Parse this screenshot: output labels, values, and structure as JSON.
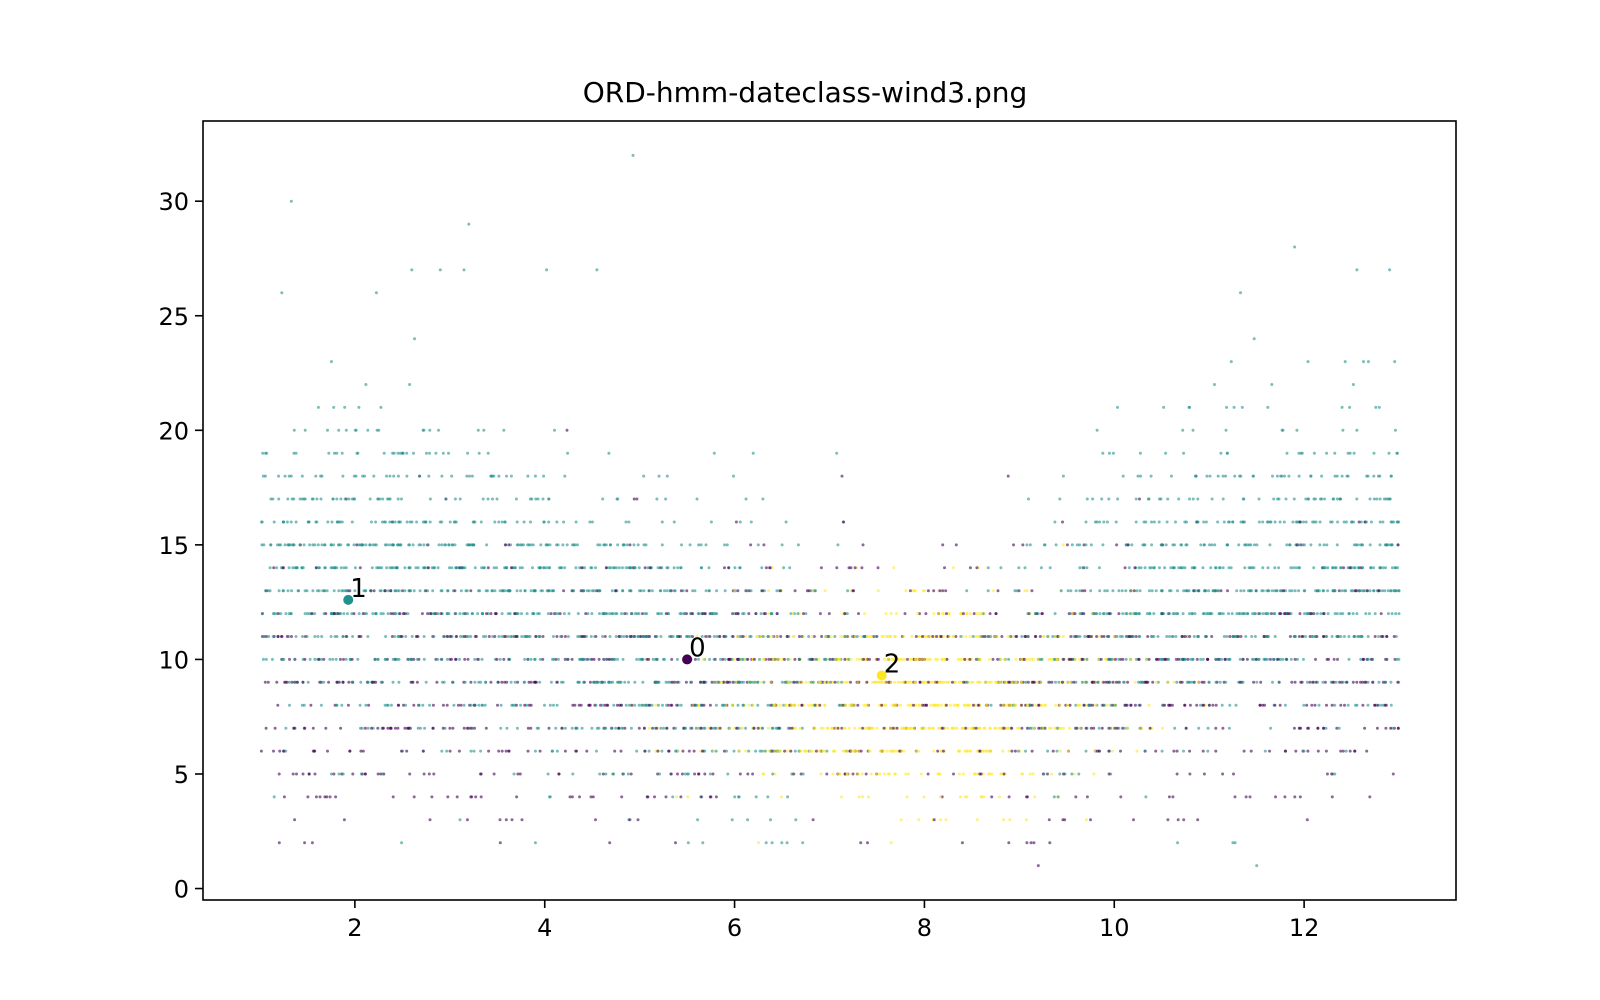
{
  "chart_data": {
    "type": "scatter",
    "title": "ORD-hmm-dateclass-wind3.png",
    "xlabel": "",
    "ylabel": "",
    "xlim": [
      0.4,
      13.6
    ],
    "ylim": [
      -0.5,
      33.5
    ],
    "xticks": [
      2,
      4,
      6,
      8,
      10,
      12
    ],
    "yticks": [
      0,
      5,
      10,
      15,
      20,
      25,
      30
    ],
    "grid": false,
    "legend": "none",
    "colors": {
      "0": "#440154",
      "1": "#21918c",
      "2": "#fde725"
    },
    "clusters": [
      {
        "label": "0",
        "x": 5.5,
        "y": 10.0
      },
      {
        "label": "1",
        "x": 1.93,
        "y": 12.6
      },
      {
        "label": "2",
        "x": 7.55,
        "y": 9.3
      }
    ],
    "outliers": [
      {
        "x": 4.93,
        "y": 32,
        "cluster": "1"
      },
      {
        "x": 1.33,
        "y": 30,
        "cluster": "1"
      },
      {
        "x": 3.2,
        "y": 29,
        "cluster": "1"
      },
      {
        "x": 11.9,
        "y": 28,
        "cluster": "1"
      },
      {
        "x": 2.6,
        "y": 27,
        "cluster": "1"
      },
      {
        "x": 2.9,
        "y": 27,
        "cluster": "1"
      },
      {
        "x": 3.15,
        "y": 27,
        "cluster": "1"
      },
      {
        "x": 4.02,
        "y": 27,
        "cluster": "1"
      },
      {
        "x": 4.55,
        "y": 27,
        "cluster": "1"
      },
      {
        "x": 12.9,
        "y": 27,
        "cluster": "1"
      },
      {
        "x": 1.23,
        "y": 26,
        "cluster": "1"
      },
      {
        "x": 11.33,
        "y": 26,
        "cluster": "1"
      },
      {
        "x": 1.47,
        "y": 2,
        "cluster": "0"
      },
      {
        "x": 7.4,
        "y": 2,
        "cluster": "0"
      },
      {
        "x": 7.65,
        "y": 2,
        "cluster": "2"
      },
      {
        "x": 8.4,
        "y": 2,
        "cluster": "0"
      },
      {
        "x": 11.25,
        "y": 2,
        "cluster": "1"
      },
      {
        "x": 9.2,
        "y": 1,
        "cluster": "0"
      },
      {
        "x": 11.5,
        "y": 1,
        "cluster": "1"
      }
    ],
    "points_note_free": true
  }
}
